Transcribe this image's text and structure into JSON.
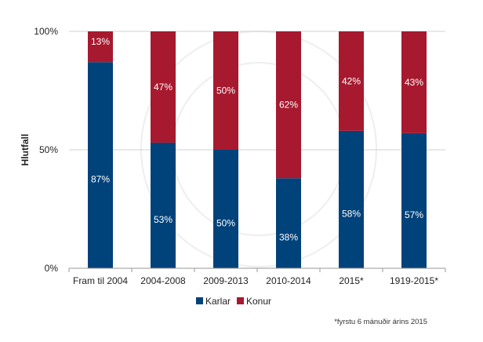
{
  "chart_data": {
    "type": "bar",
    "stacked": true,
    "title": "",
    "xlabel": "",
    "ylabel": "Hlutfall",
    "ylim": [
      0,
      100
    ],
    "yticks": [
      "0%",
      "50%",
      "100%"
    ],
    "ytick_values": [
      0,
      50,
      100
    ],
    "grid": true,
    "categories": [
      "Fram til 2004",
      "2004-2008",
      "2009-2013",
      "2010-2014",
      "2015*",
      "1919-2015*"
    ],
    "series": [
      {
        "name": "Karlar",
        "color": "#00427a",
        "values": [
          87,
          53,
          50,
          38,
          58,
          57
        ],
        "labels": [
          "87%",
          "53%",
          "50%",
          "38%",
          "58%",
          "57%"
        ]
      },
      {
        "name": "Konur",
        "color": "#a6192e",
        "values": [
          13,
          47,
          50,
          62,
          42,
          43
        ],
        "labels": [
          "13%",
          "47%",
          "50%",
          "62%",
          "42%",
          "43%"
        ]
      }
    ],
    "legend": {
      "position": "bottom",
      "entries": [
        "Karlar",
        "Konur"
      ]
    },
    "footnote": "*fyrstu 6 mánuðir árins 2015"
  }
}
